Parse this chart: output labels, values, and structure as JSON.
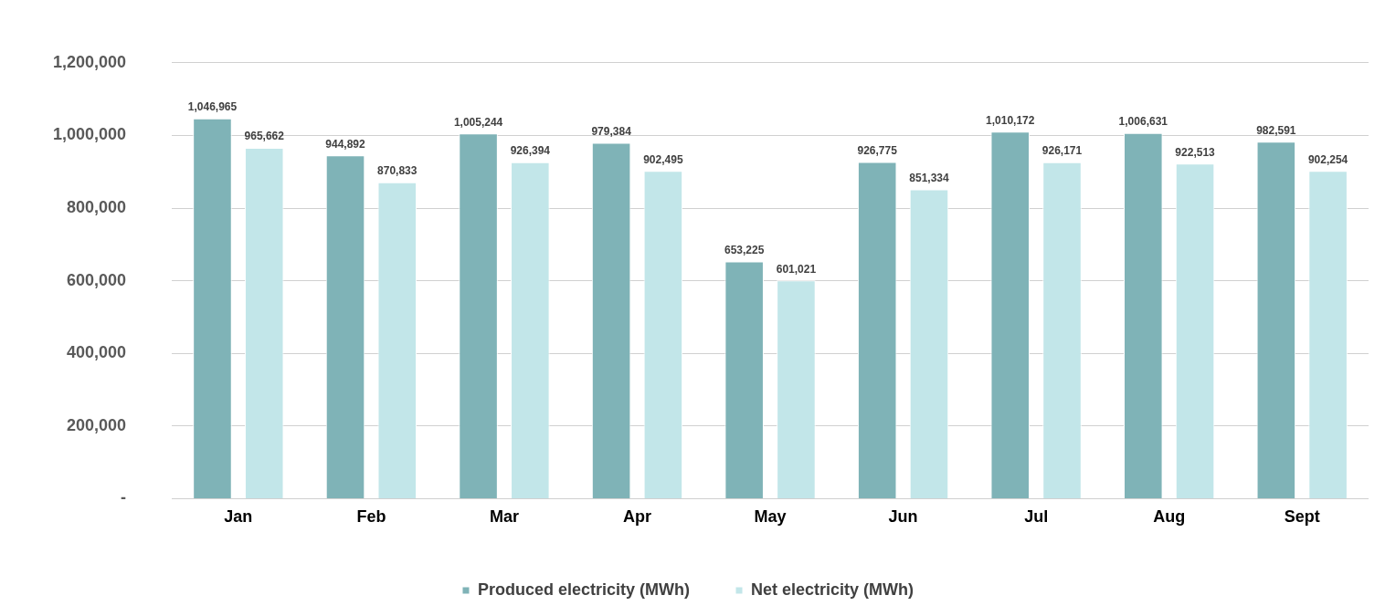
{
  "chart_data": {
    "type": "bar",
    "categories": [
      "Jan",
      "Feb",
      "Mar",
      "Apr",
      "May",
      "Jun",
      "Jul",
      "Aug",
      "Sept"
    ],
    "series": [
      {
        "name": "Produced electricity (MWh)",
        "color": "#7fb3b7",
        "values": [
          1046965,
          944892,
          1005244,
          979384,
          653225,
          926775,
          1010172,
          1006631,
          982591
        ],
        "value_labels": [
          "1,046,965",
          "944,892",
          "1,005,244",
          "979,384",
          "653,225",
          "926,775",
          "1,010,172",
          "1,006,631",
          "982,591"
        ]
      },
      {
        "name": "Net electricity (MWh)",
        "color": "#c2e6e9",
        "values": [
          965662,
          870833,
          926394,
          902495,
          601021,
          851334,
          926171,
          922513,
          902254
        ],
        "value_labels": [
          "965,662",
          "870,833",
          "926,394",
          "902,495",
          "601,021",
          "851,334",
          "926,171",
          "922,513",
          "902,254"
        ]
      }
    ],
    "ylim": [
      0,
      1200000
    ],
    "yticks": [
      {
        "value": 0,
        "label": "-"
      },
      {
        "value": 200000,
        "label": "200,000"
      },
      {
        "value": 400000,
        "label": "400,000"
      },
      {
        "value": 600000,
        "label": "600,000"
      },
      {
        "value": 800000,
        "label": "800,000"
      },
      {
        "value": 1000000,
        "label": "1,000,000"
      },
      {
        "value": 1200000,
        "label": "1,200,000"
      }
    ],
    "grid": "y",
    "legend": "bottom"
  }
}
